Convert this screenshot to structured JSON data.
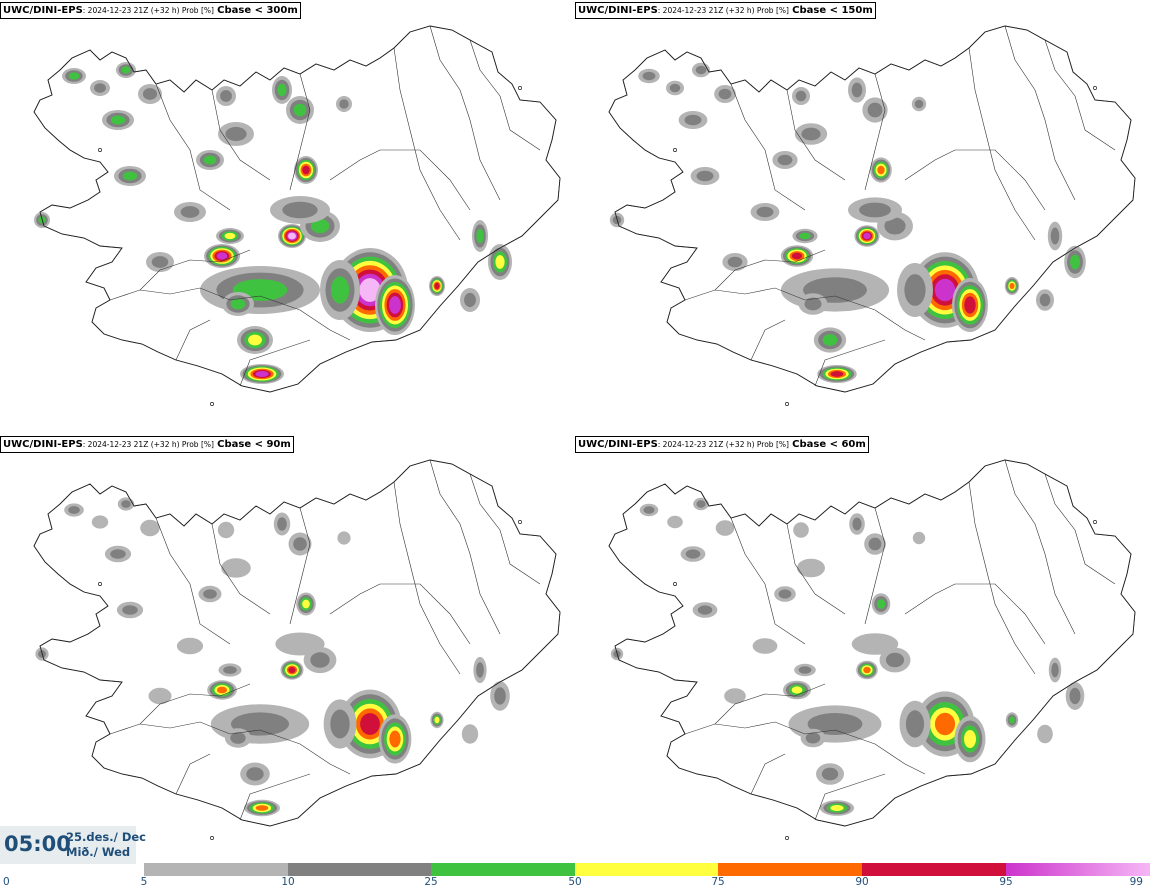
{
  "panels": [
    {
      "model": "UWC/DINI-EPS",
      "run": ": 2024-12-23 21Z (+32 h) Prob [%]",
      "variable": "Cbase < 300m",
      "intensity": 1.0
    },
    {
      "model": "UWC/DINI-EPS",
      "run": ": 2024-12-23 21Z (+32 h) Prob [%]",
      "variable": "Cbase < 150m",
      "intensity": 0.78
    },
    {
      "model": "UWC/DINI-EPS",
      "run": ": 2024-12-23 21Z (+32 h) Prob [%]",
      "variable": "Cbase < 90m",
      "intensity": 0.6
    },
    {
      "model": "UWC/DINI-EPS",
      "run": ": 2024-12-23 21Z (+32 h) Prob [%]",
      "variable": "Cbase < 60m",
      "intensity": 0.5
    }
  ],
  "valid_time": {
    "time": "05:00",
    "date_line1": "25.des./ Dec",
    "date_line2": "Mið./ Wed"
  },
  "colorbar": {
    "ticks": [
      "0",
      "5",
      "10",
      "25",
      "50",
      "75",
      "90",
      "95",
      "99"
    ],
    "bins": [
      {
        "from": 5,
        "to": 10,
        "color": "#b4b4b4"
      },
      {
        "from": 10,
        "to": 25,
        "color": "#808080"
      },
      {
        "from": 25,
        "to": 50,
        "color": "#3fc23f"
      },
      {
        "from": 50,
        "to": 75,
        "color": "#ffff40"
      },
      {
        "from": 75,
        "to": 90,
        "color": "#ff6a00"
      },
      {
        "from": 90,
        "to": 95,
        "color": "#d0103a"
      },
      {
        "from": 95,
        "to": 99,
        "color": "#cc33cc"
      }
    ],
    "top_color": "#f6b7f6"
  }
}
